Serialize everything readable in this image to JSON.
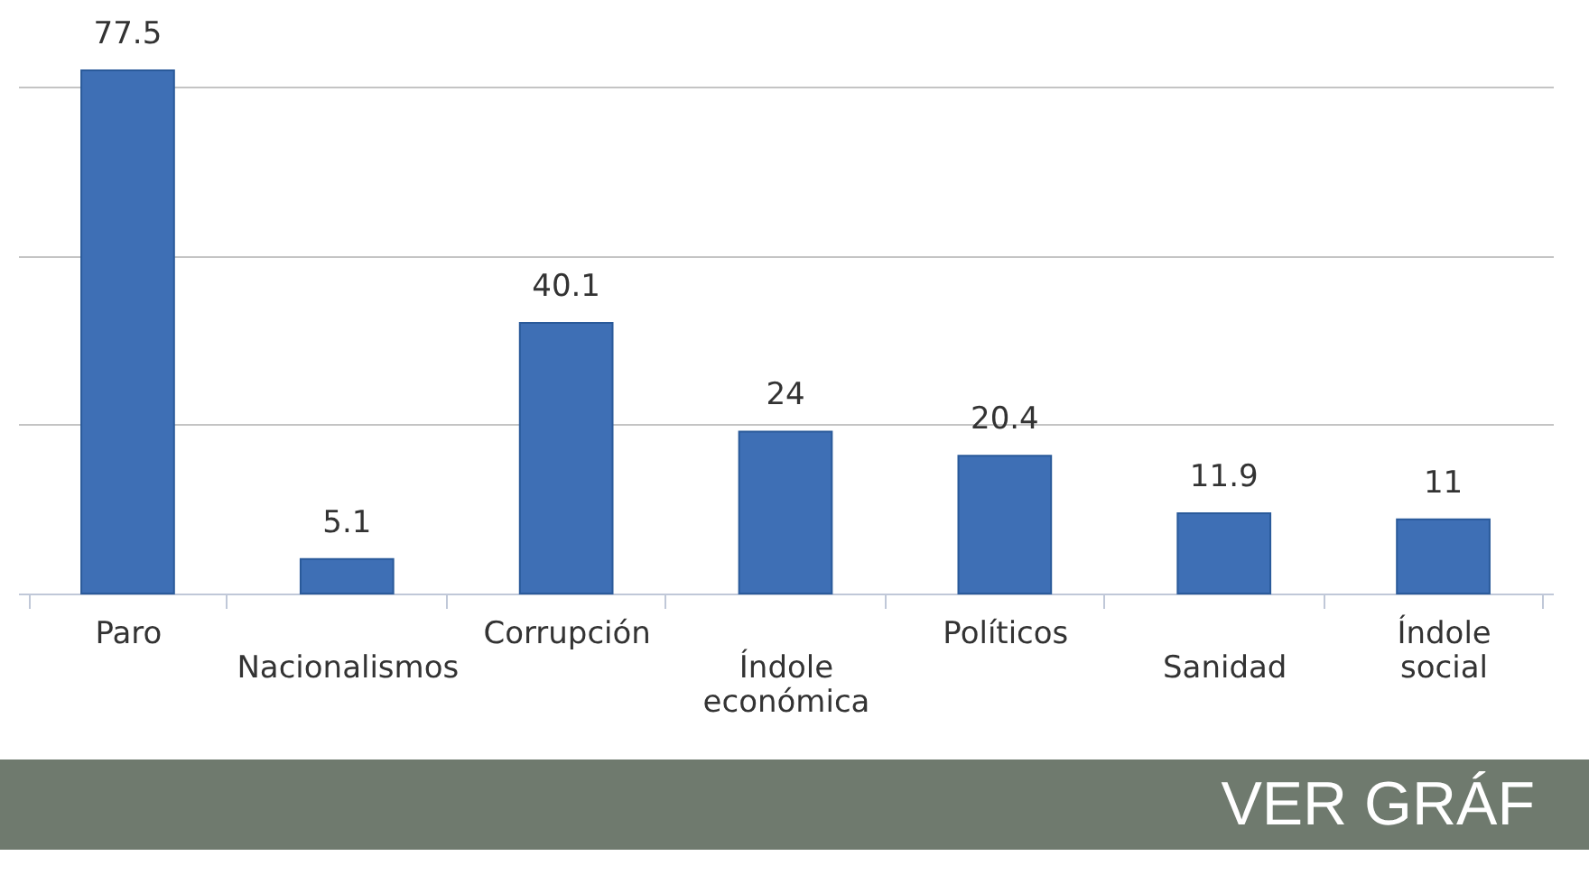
{
  "chart_data": {
    "type": "bar",
    "categories": [
      "Paro",
      "Nacionalismos",
      "Corrupción",
      "Índole económica",
      "Políticos",
      "Sanidad",
      "Índole social"
    ],
    "values": [
      77.5,
      5.1,
      40.1,
      24,
      20.4,
      11.9,
      11
    ],
    "color": "#3e6fb5",
    "yticks": [
      {
        "value": 0,
        "label": null
      },
      {
        "value": 25,
        "label": null
      },
      {
        "value": 50,
        "label": null
      },
      {
        "value": 75,
        "label": null
      }
    ],
    "tick_labels": "x",
    "grid": "y",
    "data_labels": true,
    "annotations": [
      "VER GRÁF"
    ]
  }
}
